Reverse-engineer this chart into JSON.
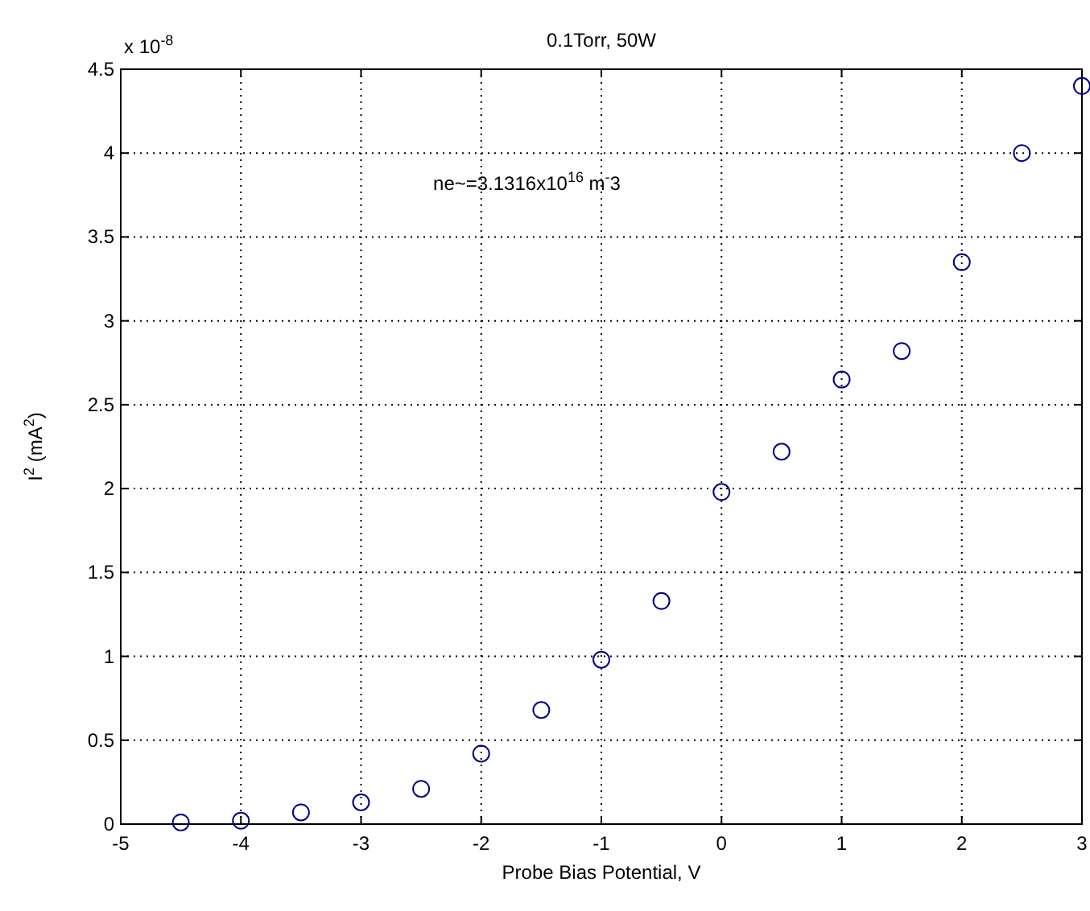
{
  "chart_data": {
    "type": "scatter",
    "title": "0.1Torr, 50W",
    "xlabel": "Probe Bias Potential, V",
    "ylabel": "I$^{2}$ (mA$^{2}$)",
    "annotations": [
      "x 10$^{-8}$",
      "ne~=3.1316x10$^{16}$ m$^{-}$3"
    ],
    "x": [
      -4.5,
      -4,
      -3.5,
      -3,
      -2.5,
      -2,
      -1.5,
      -1,
      -0.5,
      0,
      0.5,
      1,
      1.5,
      2,
      2.5,
      3
    ],
    "series": [
      {
        "color": "#00008b",
        "values": [
          0.01,
          0.02,
          0.07,
          0.13,
          0.21,
          0.42,
          0.68,
          0.98,
          1.33,
          1.98,
          2.22,
          2.65,
          2.82,
          3.35,
          4.0,
          4.4
        ]
      }
    ],
    "xlim": [
      -5,
      3
    ],
    "xticks": [
      -5,
      -4,
      -3,
      -2,
      -1,
      0,
      1,
      2,
      3
    ],
    "ylim": [
      0,
      4.5
    ],
    "yticks": [
      0,
      0.5,
      1,
      1.5,
      2,
      2.5,
      3,
      3.5,
      4,
      4.5
    ],
    "grid": true,
    "marker": "circle"
  }
}
